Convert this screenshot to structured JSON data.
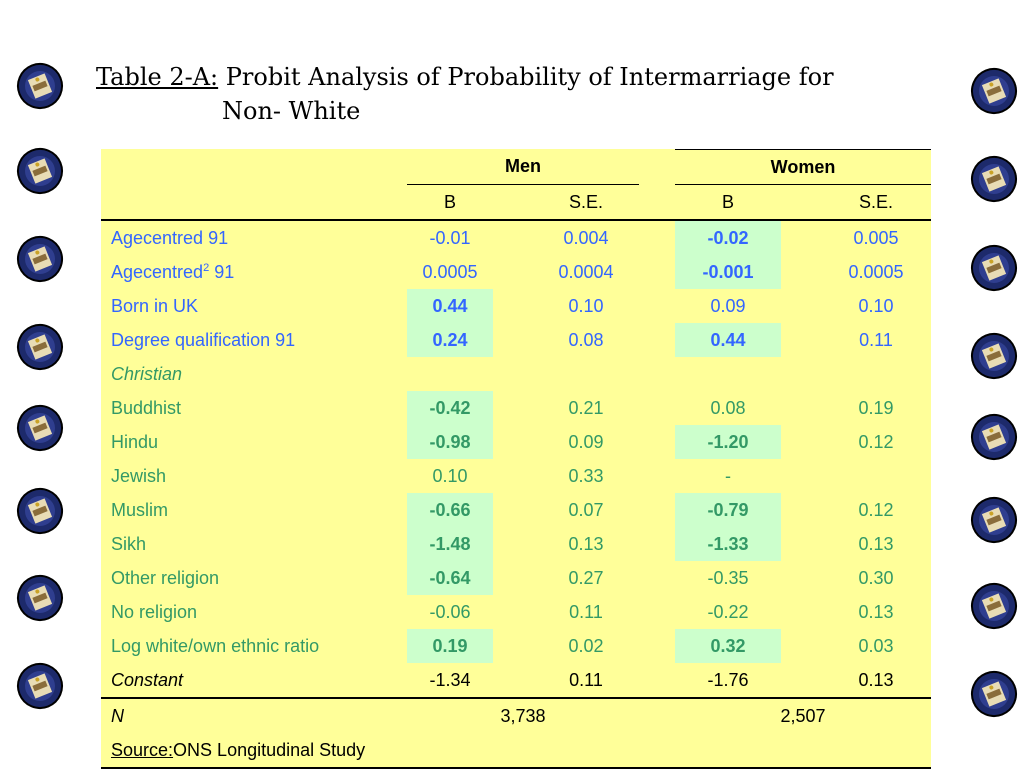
{
  "title": {
    "label": "Table 2-A:",
    "text_line1": "Probit Analysis of Probability of Intermarriage for",
    "text_line2": "Non- White"
  },
  "header": {
    "men": "Men",
    "women": "Women",
    "b": "B",
    "se": "S.E."
  },
  "rows": [
    {
      "label": "Agecentred 91",
      "men_b": "-0.01",
      "men_se": "0.004",
      "women_b": "-0.02",
      "women_se": "0.005"
    },
    {
      "label": "Agecentred",
      "label_sup": "2",
      "label_suffix": " 91",
      "men_b": "0.0005",
      "men_se": "0.0004",
      "women_b": "-0.001",
      "women_se": "0.0005"
    },
    {
      "label": "Born in UK",
      "men_b": "0.44",
      "men_se": "0.10",
      "women_b": "0.09",
      "women_se": "0.10"
    },
    {
      "label": "Degree qualification 91",
      "men_b": "0.24",
      "men_se": "0.08",
      "women_b": "0.44",
      "women_se": "0.11"
    },
    {
      "label": "Christian",
      "men_b": "",
      "men_se": "",
      "women_b": "",
      "women_se": ""
    },
    {
      "label": "Buddhist",
      "men_b": "-0.42",
      "men_se": "0.21",
      "women_b": "0.08",
      "women_se": "0.19"
    },
    {
      "label": "Hindu",
      "men_b": "-0.98",
      "men_se": "0.09",
      "women_b": "-1.20",
      "women_se": "0.12"
    },
    {
      "label": "Jewish",
      "men_b": "0.10",
      "men_se": "0.33",
      "women_b": "-",
      "women_se": ""
    },
    {
      "label": "Muslim",
      "men_b": "-0.66",
      "men_se": "0.07",
      "women_b": "-0.79",
      "women_se": "0.12"
    },
    {
      "label": "Sikh",
      "men_b": "-1.48",
      "men_se": "0.13",
      "women_b": "-1.33",
      "women_se": "0.13"
    },
    {
      "label": "Other religion",
      "men_b": "-0.64",
      "men_se": "0.27",
      "women_b": "-0.35",
      "women_se": "0.30"
    },
    {
      "label": "No religion",
      "men_b": "-0.06",
      "men_se": "0.11",
      "women_b": "-0.22",
      "women_se": "0.13"
    },
    {
      "label": "Log white/own ethnic ratio",
      "men_b": "0.19",
      "men_se": "0.02",
      "women_b": "0.32",
      "women_se": "0.03"
    },
    {
      "label": "Constant",
      "men_b": "-1.34",
      "men_se": "0.11",
      "women_b": "-1.76",
      "women_se": "0.13"
    }
  ],
  "n_row": {
    "label": "N",
    "men": "3,738",
    "women": "2,507"
  },
  "source": {
    "label": "Source:",
    "text": "ONS Longitudinal Study"
  },
  "colors": {
    "table_bg": "#ffff99",
    "significant_bg": "#ccffcc",
    "blue_text": "#3366ff",
    "green_text": "#339966"
  },
  "icons": {
    "decoration": "university-crest-icon"
  }
}
